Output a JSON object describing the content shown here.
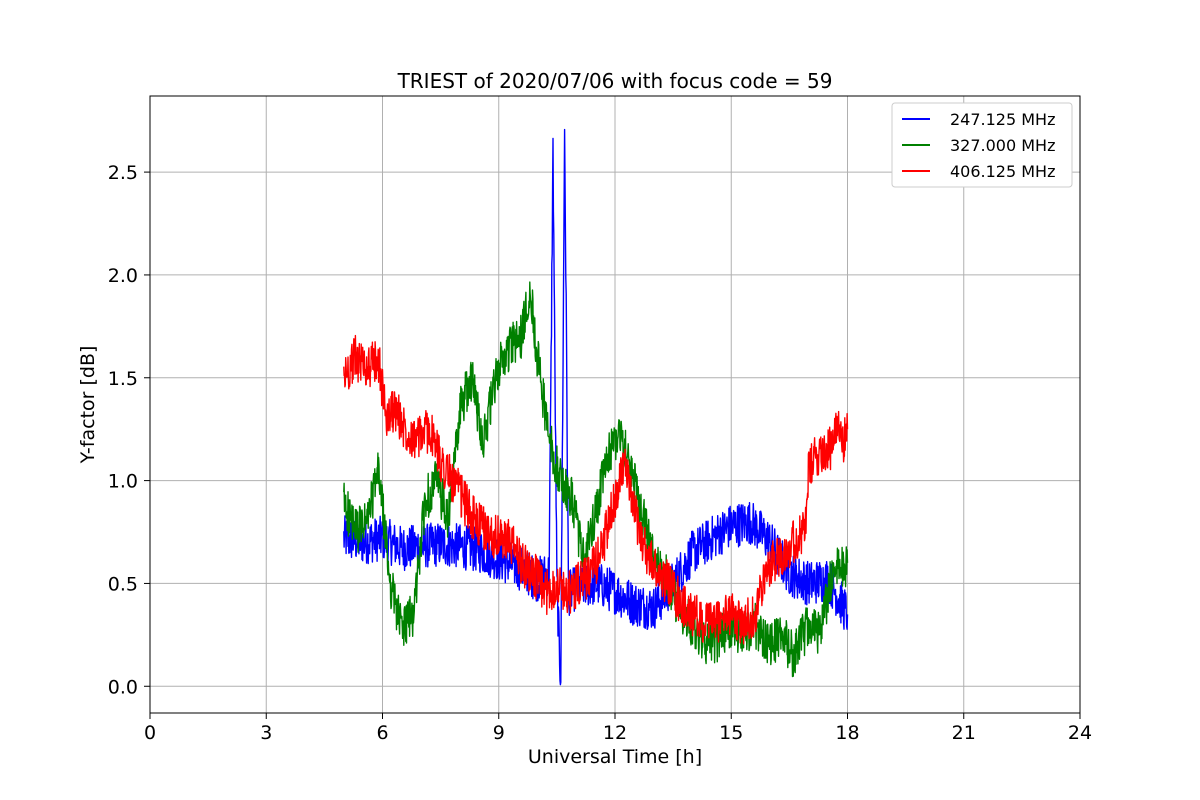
{
  "chart_data": {
    "type": "line",
    "title": "TRIEST of 2020/07/06 with focus code = 59",
    "xlabel": "Universal Time [h]",
    "ylabel": "Y-factor [dB]",
    "xlim": [
      0,
      24
    ],
    "ylim": [
      -0.13,
      2.87
    ],
    "xticks": [
      0,
      3,
      6,
      9,
      12,
      15,
      18,
      21,
      24
    ],
    "yticks": [
      0.0,
      0.5,
      1.0,
      1.5,
      2.0,
      2.5
    ],
    "xtick_labels": [
      "0",
      "3",
      "6",
      "9",
      "12",
      "15",
      "18",
      "21",
      "24"
    ],
    "ytick_labels": [
      "0.0",
      "0.5",
      "1.0",
      "1.5",
      "2.0",
      "2.5"
    ],
    "grid": true,
    "legend_position": "top-right",
    "series": [
      {
        "name": "247.125 MHz",
        "color": "#0000ff",
        "x": [
          5.0,
          5.5,
          6.0,
          6.5,
          7.0,
          7.5,
          8.0,
          8.5,
          9.0,
          9.5,
          10.0,
          10.3,
          10.4,
          10.5,
          10.6,
          10.7,
          10.8,
          11.0,
          11.5,
          12.0,
          12.5,
          13.0,
          13.5,
          14.0,
          14.5,
          15.0,
          15.5,
          16.0,
          16.5,
          17.0,
          17.5,
          18.0
        ],
        "y": [
          0.72,
          0.7,
          0.72,
          0.67,
          0.68,
          0.69,
          0.68,
          0.66,
          0.62,
          0.58,
          0.52,
          0.55,
          2.6,
          0.5,
          0.0,
          2.72,
          0.45,
          0.48,
          0.5,
          0.46,
          0.4,
          0.38,
          0.5,
          0.65,
          0.72,
          0.78,
          0.8,
          0.7,
          0.55,
          0.5,
          0.52,
          0.35
        ]
      },
      {
        "name": "327.000 MHz",
        "color": "#008000",
        "x": [
          5.0,
          5.3,
          5.6,
          5.9,
          6.2,
          6.5,
          6.8,
          7.1,
          7.4,
          7.7,
          8.0,
          8.3,
          8.6,
          9.0,
          9.3,
          9.6,
          9.8,
          10.0,
          10.3,
          10.6,
          10.9,
          11.2,
          11.5,
          11.8,
          12.1,
          12.4,
          12.7,
          13.0,
          13.3,
          13.6,
          14.0,
          14.3,
          14.6,
          15.0,
          15.3,
          15.6,
          16.0,
          16.3,
          16.6,
          17.0,
          17.3,
          17.6,
          18.0
        ],
        "y": [
          0.9,
          0.75,
          0.8,
          1.05,
          0.5,
          0.28,
          0.35,
          0.9,
          1.0,
          0.8,
          1.35,
          1.5,
          1.2,
          1.55,
          1.65,
          1.7,
          1.95,
          1.6,
          1.2,
          1.0,
          0.9,
          0.6,
          0.85,
          1.1,
          1.25,
          1.05,
          0.85,
          0.6,
          0.55,
          0.4,
          0.3,
          0.2,
          0.22,
          0.3,
          0.25,
          0.3,
          0.2,
          0.25,
          0.15,
          0.3,
          0.25,
          0.55,
          0.6
        ]
      },
      {
        "name": "406.125 MHz",
        "color": "#ff0000",
        "x": [
          5.0,
          5.3,
          5.6,
          5.9,
          6.1,
          6.3,
          6.6,
          6.9,
          7.2,
          7.5,
          7.8,
          8.1,
          8.4,
          8.7,
          9.0,
          9.3,
          9.6,
          9.9,
          10.2,
          10.5,
          10.8,
          11.1,
          11.4,
          11.7,
          12.0,
          12.2,
          12.5,
          12.8,
          13.1,
          13.4,
          13.7,
          14.0,
          14.3,
          14.6,
          15.0,
          15.3,
          15.6,
          16.0,
          16.3,
          16.6,
          16.9,
          17.0,
          17.3,
          17.6,
          17.8,
          17.9,
          18.0
        ],
        "y": [
          1.5,
          1.6,
          1.55,
          1.58,
          1.3,
          1.35,
          1.25,
          1.2,
          1.25,
          1.1,
          1.0,
          0.9,
          0.8,
          0.75,
          0.72,
          0.7,
          0.6,
          0.55,
          0.45,
          0.5,
          0.45,
          0.5,
          0.55,
          0.7,
          0.9,
          1.1,
          0.85,
          0.65,
          0.55,
          0.5,
          0.4,
          0.35,
          0.3,
          0.32,
          0.35,
          0.3,
          0.35,
          0.6,
          0.65,
          0.7,
          0.75,
          1.05,
          1.15,
          1.15,
          1.3,
          1.2,
          1.25
        ]
      }
    ]
  }
}
